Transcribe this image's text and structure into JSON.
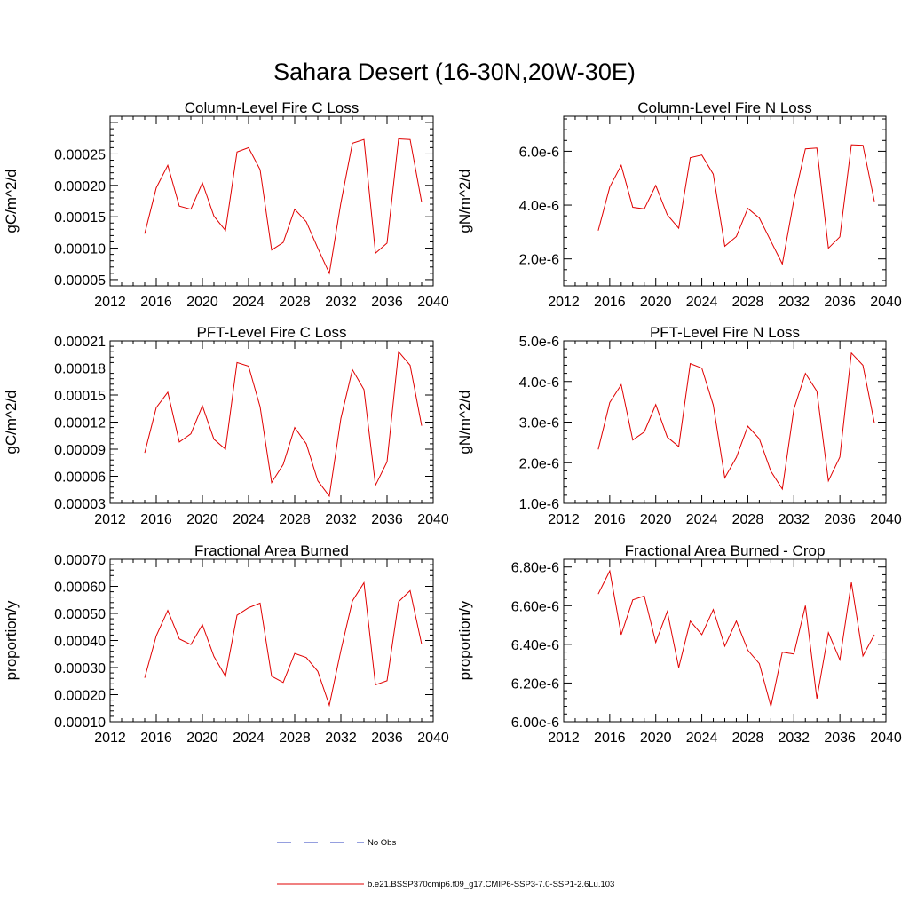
{
  "figure_title": "Sahara Desert (16-30N,20W-30E)",
  "legend": {
    "entries": [
      {
        "label": "No Obs",
        "color": "#2b3fbf",
        "style": "dashed"
      },
      {
        "label": "b.e21.BSSP370cmip6.f09_g17.CMIP6-SSP3-7.0-SSP1-2.6Lu.103",
        "color": "#e00000",
        "style": "solid"
      }
    ]
  },
  "chart_data": [
    {
      "type": "line",
      "title": "Column-Level Fire C Loss",
      "ylabel": "gC/m^2/d",
      "xlim": [
        2012,
        2040
      ],
      "xticks": [
        2012,
        2016,
        2020,
        2024,
        2028,
        2032,
        2036,
        2040
      ],
      "xtick_labels": [
        "2012",
        "2016",
        "2020",
        "2024",
        "2028",
        "2032",
        "2036",
        "2040"
      ],
      "ylim": [
        4e-05,
        0.00031
      ],
      "yticks": [
        5e-05,
        0.0001,
        0.00015,
        0.0002,
        0.00025
      ],
      "ytick_labels": [
        "0.00005",
        "0.00010",
        "0.00015",
        "0.00020",
        "0.00025"
      ],
      "series": [
        {
          "color": "#e00000",
          "x": [
            2015,
            2016,
            2017,
            2018,
            2019,
            2020,
            2021,
            2022,
            2023,
            2024,
            2025,
            2026,
            2027,
            2028,
            2029,
            2030,
            2031,
            2032,
            2033,
            2034,
            2035,
            2036,
            2037,
            2038,
            2039
          ],
          "values": [
            0.000123,
            0.000196,
            0.000232,
            0.000167,
            0.000162,
            0.000204,
            0.000151,
            0.000128,
            0.000253,
            0.00026,
            0.000225,
            9.7e-05,
            0.000109,
            0.000162,
            0.000142,
            0.0001,
            6e-05,
            0.000172,
            0.000267,
            0.000273,
            9.2e-05,
            0.000108,
            0.000274,
            0.000273,
            0.000173
          ]
        }
      ]
    },
    {
      "type": "line",
      "title": "Column-Level Fire N Loss",
      "ylabel": "gN/m^2/d",
      "xlim": [
        2012,
        2040
      ],
      "xticks": [
        2012,
        2016,
        2020,
        2024,
        2028,
        2032,
        2036,
        2040
      ],
      "xtick_labels": [
        "2012",
        "2016",
        "2020",
        "2024",
        "2028",
        "2032",
        "2036",
        "2040"
      ],
      "ylim": [
        1e-06,
        7.3e-06
      ],
      "yticks": [
        2e-06,
        4e-06,
        6e-06
      ],
      "ytick_labels": [
        "2.0e-6",
        "4.0e-6",
        "6.0e-6"
      ],
      "series": [
        {
          "color": "#e00000",
          "x": [
            2015,
            2016,
            2017,
            2018,
            2019,
            2020,
            2021,
            2022,
            2023,
            2024,
            2025,
            2026,
            2027,
            2028,
            2029,
            2030,
            2031,
            2032,
            2033,
            2034,
            2035,
            2036,
            2037,
            2038,
            2039
          ],
          "values": [
            3.05e-06,
            4.67e-06,
            5.48e-06,
            3.92e-06,
            3.86e-06,
            4.73e-06,
            3.64e-06,
            3.14e-06,
            5.76e-06,
            5.86e-06,
            5.15e-06,
            2.47e-06,
            2.83e-06,
            3.88e-06,
            3.52e-06,
            2.66e-06,
            1.81e-06,
            4.18e-06,
            6.09e-06,
            6.12e-06,
            2.4e-06,
            2.82e-06,
            6.24e-06,
            6.22e-06,
            4.14e-06
          ]
        }
      ]
    },
    {
      "type": "line",
      "title": "PFT-Level Fire C Loss",
      "ylabel": "gC/m^2/d",
      "xlim": [
        2012,
        2040
      ],
      "xticks": [
        2012,
        2016,
        2020,
        2024,
        2028,
        2032,
        2036,
        2040
      ],
      "xtick_labels": [
        "2012",
        "2016",
        "2020",
        "2024",
        "2028",
        "2032",
        "2036",
        "2040"
      ],
      "ylim": [
        3e-05,
        0.00021
      ],
      "yticks": [
        3e-05,
        6e-05,
        9e-05,
        0.00012,
        0.00015,
        0.00018,
        0.00021
      ],
      "ytick_labels": [
        "0.00003",
        "0.00006",
        "0.00009",
        "0.00012",
        "0.00015",
        "0.00018",
        "0.00021"
      ],
      "series": [
        {
          "color": "#e00000",
          "x": [
            2015,
            2016,
            2017,
            2018,
            2019,
            2020,
            2021,
            2022,
            2023,
            2024,
            2025,
            2026,
            2027,
            2028,
            2029,
            2030,
            2031,
            2032,
            2033,
            2034,
            2035,
            2036,
            2037,
            2038,
            2039
          ],
          "values": [
            8.6e-05,
            0.000136,
            0.000153,
            9.8e-05,
            0.000107,
            0.000138,
            0.000101,
            9e-05,
            0.000186,
            0.000182,
            0.000137,
            5.3e-05,
            7.3e-05,
            0.000114,
            9.6e-05,
            5.5e-05,
            3.8e-05,
            0.000124,
            0.000178,
            0.000156,
            5e-05,
            7.6e-05,
            0.000198,
            0.000183,
            0.000116
          ]
        }
      ]
    },
    {
      "type": "line",
      "title": "PFT-Level Fire N Loss",
      "ylabel": "gN/m^2/d",
      "xlim": [
        2012,
        2040
      ],
      "xticks": [
        2012,
        2016,
        2020,
        2024,
        2028,
        2032,
        2036,
        2040
      ],
      "xtick_labels": [
        "2012",
        "2016",
        "2020",
        "2024",
        "2028",
        "2032",
        "2036",
        "2040"
      ],
      "ylim": [
        1e-06,
        5e-06
      ],
      "yticks": [
        1e-06,
        2e-06,
        3e-06,
        4e-06,
        5e-06
      ],
      "ytick_labels": [
        "1.0e-6",
        "2.0e-6",
        "3.0e-6",
        "4.0e-6",
        "5.0e-6"
      ],
      "series": [
        {
          "color": "#e00000",
          "x": [
            2015,
            2016,
            2017,
            2018,
            2019,
            2020,
            2021,
            2022,
            2023,
            2024,
            2025,
            2026,
            2027,
            2028,
            2029,
            2030,
            2031,
            2032,
            2033,
            2034,
            2035,
            2036,
            2037,
            2038,
            2039
          ],
          "values": [
            2.33e-06,
            3.48e-06,
            3.92e-06,
            2.56e-06,
            2.76e-06,
            3.43e-06,
            2.63e-06,
            2.4e-06,
            4.44e-06,
            4.33e-06,
            3.42e-06,
            1.63e-06,
            2.13e-06,
            2.9e-06,
            2.59e-06,
            1.79e-06,
            1.35e-06,
            3.32e-06,
            4.2e-06,
            3.76e-06,
            1.55e-06,
            2.14e-06,
            4.7e-06,
            4.4e-06,
            2.98e-06
          ]
        }
      ]
    },
    {
      "type": "line",
      "title": "Fractional Area Burned",
      "ylabel": "proportion/y",
      "xlim": [
        2012,
        2040
      ],
      "xticks": [
        2012,
        2016,
        2020,
        2024,
        2028,
        2032,
        2036,
        2040
      ],
      "xtick_labels": [
        "2012",
        "2016",
        "2020",
        "2024",
        "2028",
        "2032",
        "2036",
        "2040"
      ],
      "ylim": [
        0.0001,
        0.0007
      ],
      "yticks": [
        0.0001,
        0.0002,
        0.0003,
        0.0004,
        0.0005,
        0.0006,
        0.0007
      ],
      "ytick_labels": [
        "0.00010",
        "0.00020",
        "0.00030",
        "0.00040",
        "0.00050",
        "0.00060",
        "0.00070"
      ],
      "series": [
        {
          "color": "#e00000",
          "x": [
            2015,
            2016,
            2017,
            2018,
            2019,
            2020,
            2021,
            2022,
            2023,
            2024,
            2025,
            2026,
            2027,
            2028,
            2029,
            2030,
            2031,
            2032,
            2033,
            2034,
            2035,
            2036,
            2037,
            2038,
            2039
          ],
          "values": [
            0.000262,
            0.000417,
            0.000511,
            0.000406,
            0.000385,
            0.000458,
            0.000341,
            0.000268,
            0.000493,
            0.000521,
            0.000538,
            0.000268,
            0.000245,
            0.000352,
            0.000337,
            0.000286,
            0.000161,
            0.000363,
            0.000546,
            0.000613,
            0.000236,
            0.000251,
            0.000543,
            0.000584,
            0.000386
          ]
        }
      ]
    },
    {
      "type": "line",
      "title": "Fractional Area Burned - Crop",
      "ylabel": "proportion/y",
      "xlim": [
        2012,
        2040
      ],
      "xticks": [
        2012,
        2016,
        2020,
        2024,
        2028,
        2032,
        2036,
        2040
      ],
      "xtick_labels": [
        "2012",
        "2016",
        "2020",
        "2024",
        "2028",
        "2032",
        "2036",
        "2040"
      ],
      "ylim": [
        6e-06,
        6.84e-06
      ],
      "yticks": [
        6e-06,
        6.2e-06,
        6.4e-06,
        6.6e-06,
        6.8e-06
      ],
      "ytick_labels": [
        "6.00e-6",
        "6.20e-6",
        "6.40e-6",
        "6.60e-6",
        "6.80e-6"
      ],
      "series": [
        {
          "color": "#e00000",
          "x": [
            2015,
            2016,
            2017,
            2018,
            2019,
            2020,
            2021,
            2022,
            2023,
            2024,
            2025,
            2026,
            2027,
            2028,
            2029,
            2030,
            2031,
            2032,
            2033,
            2034,
            2035,
            2036,
            2037,
            2038,
            2039
          ],
          "values": [
            6.66e-06,
            6.78e-06,
            6.45e-06,
            6.63e-06,
            6.65e-06,
            6.41e-06,
            6.57e-06,
            6.28e-06,
            6.52e-06,
            6.45e-06,
            6.58e-06,
            6.39e-06,
            6.52e-06,
            6.37e-06,
            6.3e-06,
            6.08e-06,
            6.36e-06,
            6.35e-06,
            6.6e-06,
            6.12e-06,
            6.46e-06,
            6.32e-06,
            6.72e-06,
            6.34e-06,
            6.45e-06
          ]
        }
      ]
    }
  ]
}
